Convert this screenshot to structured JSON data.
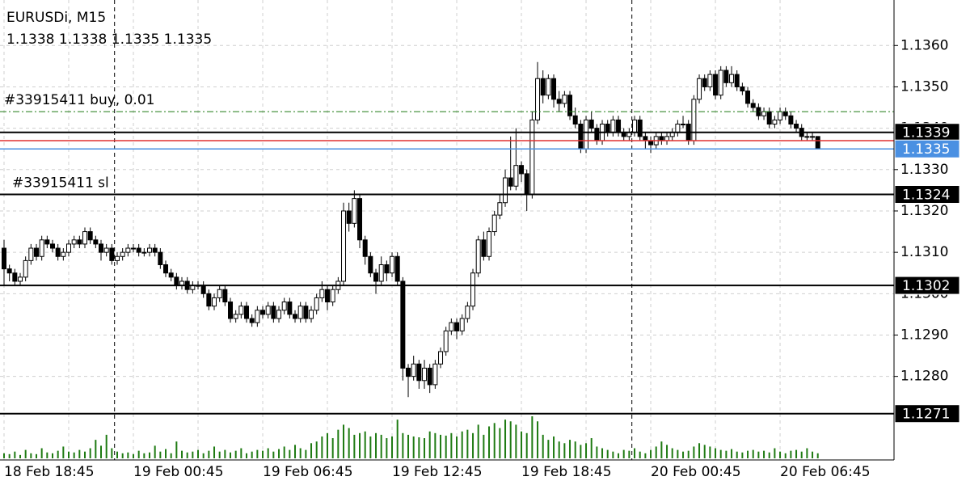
{
  "chart_data": {
    "type": "candlestick",
    "title": "EURUSDi, M15",
    "categories": [
      "18 Feb 18:45",
      null,
      null,
      null,
      null,
      null,
      null,
      null,
      null,
      null,
      null,
      null,
      null,
      null,
      null,
      null,
      null,
      null,
      null,
      null,
      null,
      null,
      null,
      null,
      "19 Feb 00:45",
      null,
      null,
      null,
      null,
      null,
      null,
      null,
      null,
      null,
      null,
      null,
      null,
      null,
      null,
      null,
      null,
      null,
      null,
      null,
      null,
      null,
      null,
      null,
      "19 Feb 06:45",
      null,
      null,
      null,
      null,
      null,
      null,
      null,
      null,
      null,
      null,
      null,
      null,
      null,
      null,
      null,
      null,
      null,
      null,
      null,
      null,
      null,
      null,
      null,
      "19 Feb 12:45",
      null,
      null,
      null,
      null,
      null,
      null,
      null,
      null,
      null,
      null,
      null,
      null,
      null,
      null,
      null,
      null,
      null,
      null,
      null,
      null,
      null,
      null,
      null,
      "19 Feb 18:45",
      null,
      null,
      null,
      null,
      null,
      null,
      null,
      null,
      null,
      null,
      null,
      null,
      null,
      null,
      null,
      null,
      null,
      null,
      null,
      null,
      null,
      null,
      null,
      "20 Feb 00:45",
      null,
      null,
      null,
      null,
      null,
      null,
      null,
      null,
      null,
      null,
      null,
      null,
      null,
      null,
      null,
      null,
      null,
      null,
      null,
      null,
      null,
      null,
      null,
      "20 Feb 06:45",
      null,
      null,
      null,
      null,
      null,
      null,
      null
    ],
    "candles": [
      [
        1.1311,
        1.1313,
        1.1302,
        1.1306
      ],
      [
        1.1306,
        1.1307,
        1.1303,
        1.1305
      ],
      [
        1.1305,
        1.1306,
        1.1302,
        1.1303
      ],
      [
        1.1303,
        1.1305,
        1.1302,
        1.1304
      ],
      [
        1.1304,
        1.1309,
        1.1303,
        1.1308
      ],
      [
        1.1308,
        1.1312,
        1.1307,
        1.1311
      ],
      [
        1.1311,
        1.1312,
        1.1308,
        1.1309
      ],
      [
        1.1309,
        1.1314,
        1.1308,
        1.1313
      ],
      [
        1.1313,
        1.1314,
        1.1311,
        1.1312
      ],
      [
        1.1312,
        1.1313,
        1.131,
        1.1311
      ],
      [
        1.1311,
        1.1312,
        1.1308,
        1.1309
      ],
      [
        1.1309,
        1.1311,
        1.1308,
        1.131
      ],
      [
        1.131,
        1.1313,
        1.1309,
        1.1312
      ],
      [
        1.1312,
        1.1314,
        1.1311,
        1.1313
      ],
      [
        1.1313,
        1.1314,
        1.1311,
        1.1312
      ],
      [
        1.1312,
        1.1316,
        1.1311,
        1.1315
      ],
      [
        1.1315,
        1.1316,
        1.1312,
        1.1313
      ],
      [
        1.1313,
        1.1314,
        1.1311,
        1.1312
      ],
      [
        1.1312,
        1.1313,
        1.1308,
        1.131
      ],
      [
        1.131,
        1.1312,
        1.1309,
        1.1311
      ],
      [
        1.1311,
        1.1312,
        1.1307,
        1.1308
      ],
      [
        1.1308,
        1.131,
        1.1307,
        1.1309
      ],
      [
        1.1309,
        1.1311,
        1.1308,
        1.131
      ],
      [
        1.131,
        1.1312,
        1.1309,
        1.1311
      ],
      [
        1.1311,
        1.1312,
        1.131,
        1.1311
      ],
      [
        1.1311,
        1.1312,
        1.1309,
        1.131
      ],
      [
        1.131,
        1.1311,
        1.1309,
        1.131
      ],
      [
        1.131,
        1.1312,
        1.1309,
        1.1311
      ],
      [
        1.1311,
        1.1312,
        1.1309,
        1.131
      ],
      [
        1.131,
        1.1311,
        1.1306,
        1.1307
      ],
      [
        1.1307,
        1.1308,
        1.1304,
        1.1305
      ],
      [
        1.1305,
        1.1306,
        1.1303,
        1.1304
      ],
      [
        1.1304,
        1.1305,
        1.1301,
        1.1302
      ],
      [
        1.1302,
        1.1304,
        1.1301,
        1.1303
      ],
      [
        1.1303,
        1.1304,
        1.13,
        1.1301
      ],
      [
        1.1301,
        1.1303,
        1.13,
        1.1302
      ],
      [
        1.1302,
        1.1303,
        1.1301,
        1.1302
      ],
      [
        1.1302,
        1.1303,
        1.1299,
        1.13
      ],
      [
        1.13,
        1.1301,
        1.1296,
        1.1297
      ],
      [
        1.1297,
        1.13,
        1.1296,
        1.1299
      ],
      [
        1.1299,
        1.1302,
        1.1298,
        1.1301
      ],
      [
        1.1301,
        1.1302,
        1.1297,
        1.1298
      ],
      [
        1.1298,
        1.1299,
        1.1293,
        1.1294
      ],
      [
        1.1294,
        1.1296,
        1.1293,
        1.1295
      ],
      [
        1.1295,
        1.1298,
        1.1294,
        1.1297
      ],
      [
        1.1297,
        1.1298,
        1.1293,
        1.1294
      ],
      [
        1.1294,
        1.1295,
        1.1292,
        1.1293
      ],
      [
        1.1293,
        1.1297,
        1.1292,
        1.1296
      ],
      [
        1.1296,
        1.1297,
        1.1294,
        1.1295
      ],
      [
        1.1295,
        1.1298,
        1.1294,
        1.1297
      ],
      [
        1.1297,
        1.1298,
        1.1293,
        1.1294
      ],
      [
        1.1294,
        1.1297,
        1.1293,
        1.1296
      ],
      [
        1.1296,
        1.1299,
        1.1295,
        1.1298
      ],
      [
        1.1298,
        1.1299,
        1.1294,
        1.1295
      ],
      [
        1.1295,
        1.1296,
        1.1293,
        1.1294
      ],
      [
        1.1294,
        1.1298,
        1.1293,
        1.1297
      ],
      [
        1.1297,
        1.1298,
        1.1293,
        1.1294
      ],
      [
        1.1294,
        1.1297,
        1.1293,
        1.1296
      ],
      [
        1.1296,
        1.13,
        1.1295,
        1.1299
      ],
      [
        1.1299,
        1.1303,
        1.1298,
        1.1301
      ],
      [
        1.1301,
        1.1302,
        1.1296,
        1.1298
      ],
      [
        1.1298,
        1.1302,
        1.1297,
        1.1301
      ],
      [
        1.1301,
        1.1304,
        1.13,
        1.1303
      ],
      [
        1.1303,
        1.1322,
        1.1302,
        1.132
      ],
      [
        1.132,
        1.1322,
        1.1315,
        1.1317
      ],
      [
        1.1317,
        1.1325,
        1.1316,
        1.1323
      ],
      [
        1.1323,
        1.1324,
        1.1311,
        1.1313
      ],
      [
        1.1313,
        1.1314,
        1.1307,
        1.1309
      ],
      [
        1.1309,
        1.131,
        1.1304,
        1.1305
      ],
      [
        1.1305,
        1.1306,
        1.13,
        1.1303
      ],
      [
        1.1303,
        1.1309,
        1.1302,
        1.1307
      ],
      [
        1.1307,
        1.1308,
        1.1303,
        1.1305
      ],
      [
        1.1305,
        1.131,
        1.1304,
        1.1309
      ],
      [
        1.1309,
        1.131,
        1.1302,
        1.1303
      ],
      [
        1.1303,
        1.1304,
        1.1279,
        1.1282
      ],
      [
        1.1282,
        1.1283,
        1.1275,
        1.128
      ],
      [
        1.128,
        1.1285,
        1.1279,
        1.1283
      ],
      [
        1.1283,
        1.1284,
        1.1277,
        1.1279
      ],
      [
        1.1279,
        1.1284,
        1.1277,
        1.1282
      ],
      [
        1.1282,
        1.1283,
        1.1276,
        1.1278
      ],
      [
        1.1278,
        1.1284,
        1.1277,
        1.1283
      ],
      [
        1.1283,
        1.1287,
        1.1282,
        1.1286
      ],
      [
        1.1286,
        1.1292,
        1.1285,
        1.1291
      ],
      [
        1.1291,
        1.1294,
        1.129,
        1.1293
      ],
      [
        1.1293,
        1.1294,
        1.1289,
        1.1291
      ],
      [
        1.1291,
        1.1295,
        1.129,
        1.1294
      ],
      [
        1.1294,
        1.1298,
        1.1293,
        1.1297
      ],
      [
        1.1297,
        1.1306,
        1.1296,
        1.1305
      ],
      [
        1.1305,
        1.1314,
        1.1304,
        1.1313
      ],
      [
        1.1313,
        1.1315,
        1.1308,
        1.1309
      ],
      [
        1.1309,
        1.1316,
        1.1308,
        1.1315
      ],
      [
        1.1315,
        1.132,
        1.1314,
        1.1319
      ],
      [
        1.1319,
        1.1324,
        1.1318,
        1.1322
      ],
      [
        1.1322,
        1.133,
        1.1321,
        1.1328
      ],
      [
        1.1328,
        1.1338,
        1.1325,
        1.1326
      ],
      [
        1.1326,
        1.134,
        1.1325,
        1.1331
      ],
      [
        1.1331,
        1.1332,
        1.1327,
        1.1329
      ],
      [
        1.1329,
        1.133,
        1.132,
        1.1324
      ],
      [
        1.1324,
        1.1344,
        1.1323,
        1.1342
      ],
      [
        1.1342,
        1.1356,
        1.1341,
        1.1352
      ],
      [
        1.1352,
        1.1354,
        1.1346,
        1.1348
      ],
      [
        1.1348,
        1.1353,
        1.1347,
        1.1352
      ],
      [
        1.1352,
        1.1353,
        1.1345,
        1.1347
      ],
      [
        1.1347,
        1.1349,
        1.1344,
        1.1346
      ],
      [
        1.1346,
        1.1349,
        1.1345,
        1.1348
      ],
      [
        1.1348,
        1.1349,
        1.1342,
        1.1343
      ],
      [
        1.1343,
        1.1345,
        1.134,
        1.1341
      ],
      [
        1.1341,
        1.1342,
        1.1334,
        1.1335
      ],
      [
        1.1335,
        1.1343,
        1.1334,
        1.1342
      ],
      [
        1.1342,
        1.1344,
        1.1339,
        1.134
      ],
      [
        1.134,
        1.1341,
        1.1336,
        1.1337
      ],
      [
        1.1337,
        1.1342,
        1.1336,
        1.1341
      ],
      [
        1.1341,
        1.1342,
        1.1338,
        1.1339
      ],
      [
        1.1339,
        1.1343,
        1.1338,
        1.1342
      ],
      [
        1.1342,
        1.1343,
        1.1338,
        1.1339
      ],
      [
        1.1339,
        1.134,
        1.1337,
        1.1338
      ],
      [
        1.1338,
        1.134,
        1.1337,
        1.1339
      ],
      [
        1.1339,
        1.1343,
        1.1338,
        1.1342
      ],
      [
        1.1342,
        1.1343,
        1.1337,
        1.1338
      ],
      [
        1.1338,
        1.1339,
        1.1335,
        1.1337
      ],
      [
        1.1337,
        1.1338,
        1.1334,
        1.1336
      ],
      [
        1.1336,
        1.1339,
        1.1335,
        1.1338
      ],
      [
        1.1338,
        1.1339,
        1.1336,
        1.1337
      ],
      [
        1.1337,
        1.1339,
        1.1336,
        1.1338
      ],
      [
        1.1338,
        1.134,
        1.1337,
        1.1339
      ],
      [
        1.1339,
        1.1342,
        1.1338,
        1.1341
      ],
      [
        1.1341,
        1.1343,
        1.134,
        1.1341
      ],
      [
        1.1341,
        1.1342,
        1.1336,
        1.1337
      ],
      [
        1.1337,
        1.1348,
        1.1336,
        1.1347
      ],
      [
        1.1347,
        1.1353,
        1.1346,
        1.1352
      ],
      [
        1.1352,
        1.1353,
        1.1349,
        1.135
      ],
      [
        1.135,
        1.1354,
        1.1349,
        1.1353
      ],
      [
        1.1353,
        1.1354,
        1.1347,
        1.1348
      ],
      [
        1.1348,
        1.1355,
        1.1347,
        1.1354
      ],
      [
        1.1354,
        1.1355,
        1.135,
        1.1351
      ],
      [
        1.1351,
        1.1355,
        1.135,
        1.1353
      ],
      [
        1.1353,
        1.1354,
        1.1349,
        1.135
      ],
      [
        1.135,
        1.1351,
        1.1348,
        1.1349
      ],
      [
        1.1349,
        1.135,
        1.1345,
        1.1346
      ],
      [
        1.1346,
        1.1347,
        1.1344,
        1.1345
      ],
      [
        1.1345,
        1.1346,
        1.1342,
        1.1343
      ],
      [
        1.1343,
        1.1345,
        1.1342,
        1.1344
      ],
      [
        1.1344,
        1.1345,
        1.134,
        1.1341
      ],
      [
        1.1341,
        1.1343,
        1.134,
        1.1342
      ],
      [
        1.1342,
        1.1345,
        1.1341,
        1.1344
      ],
      [
        1.1344,
        1.1345,
        1.1342,
        1.1343
      ],
      [
        1.1343,
        1.1344,
        1.134,
        1.1341
      ],
      [
        1.1341,
        1.1342,
        1.1339,
        1.134
      ],
      [
        1.134,
        1.1341,
        1.1337,
        1.1338
      ],
      [
        1.1338,
        1.1339,
        1.1337,
        1.1338
      ],
      [
        1.1338,
        1.1339,
        1.1337,
        1.1338
      ],
      [
        1.1338,
        1.1338,
        1.1335,
        1.1335
      ]
    ],
    "volumes": [
      6,
      5,
      8,
      4,
      10,
      6,
      5,
      12,
      7,
      6,
      9,
      14,
      8,
      7,
      10,
      8,
      12,
      22,
      15,
      28,
      12,
      8,
      6,
      7,
      5,
      9,
      6,
      7,
      15,
      8,
      11,
      6,
      20,
      9,
      7,
      8,
      10,
      6,
      9,
      14,
      8,
      10,
      7,
      9,
      12,
      6,
      8,
      10,
      9,
      12,
      8,
      11,
      14,
      10,
      16,
      12,
      10,
      18,
      20,
      26,
      30,
      24,
      34,
      40,
      36,
      28,
      30,
      32,
      26,
      30,
      28,
      24,
      26,
      46,
      30,
      28,
      26,
      25,
      24,
      32,
      30,
      28,
      27,
      30,
      26,
      32,
      34,
      30,
      40,
      28,
      38,
      42,
      36,
      46,
      44,
      40,
      32,
      30,
      50,
      44,
      28,
      22,
      26,
      20,
      18,
      22,
      20,
      16,
      18,
      24,
      14,
      12,
      10,
      8,
      6,
      10,
      9,
      12,
      8,
      6,
      10,
      14,
      20,
      16,
      12,
      10,
      8,
      9,
      14,
      18,
      16,
      14,
      12,
      10,
      9,
      11,
      8,
      7,
      9,
      10,
      8,
      9,
      7,
      12,
      8,
      6,
      9,
      10,
      8,
      12,
      8,
      6
    ],
    "volume_color": "#1e7a12",
    "ylim": [
      1.126,
      1.1371
    ],
    "yticks": [
      {
        "value": 1.136,
        "label": "1.1360"
      },
      {
        "value": 1.135,
        "label": "1.1350"
      },
      {
        "value": 1.134,
        "label": "1.1340"
      },
      {
        "value": 1.133,
        "label": "1.1330"
      },
      {
        "value": 1.132,
        "label": "1.1320"
      },
      {
        "value": 1.131,
        "label": "1.1310"
      },
      {
        "value": 1.13,
        "label": "1.1300"
      },
      {
        "value": 1.129,
        "label": "1.1290"
      },
      {
        "value": 1.128,
        "label": "1.1280"
      }
    ],
    "grid": true,
    "price_lines": [
      {
        "value": 1.1339,
        "color": "#000000",
        "show_label": true
      },
      {
        "value": 1.1337,
        "color": "#e03030",
        "show_label": false
      },
      {
        "value": 1.1335,
        "color": "#4a90e2",
        "show_label": true
      },
      {
        "value": 1.1324,
        "color": "#000000",
        "show_label": true
      },
      {
        "value": 1.1302,
        "color": "#000000",
        "show_label": true
      },
      {
        "value": 1.1271,
        "color": "#000000",
        "show_label": true
      }
    ],
    "orders": [
      {
        "text": "#33915411 buy, 0.01",
        "value": 1.1344,
        "color": "#1e7a12"
      },
      {
        "text": "#33915411 sl",
        "value": 1.1324,
        "color": "#000000"
      }
    ]
  }
}
